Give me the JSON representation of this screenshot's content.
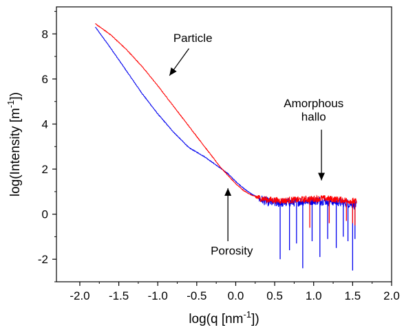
{
  "chart_data": {
    "type": "line",
    "xlabel": "log(q [nm",
    "xlabel_sup": "-1",
    "xlabel_end": "])",
    "ylabel": "log(Intensity [m",
    "ylabel_sup": "-1",
    "ylabel_end": "])",
    "xlim": [
      -2.3,
      2.0
    ],
    "ylim": [
      -3.0,
      9.2
    ],
    "x_ticks": [
      -2.0,
      -1.5,
      -1.0,
      -0.5,
      0.0,
      0.5,
      1.0,
      1.5,
      2.0
    ],
    "x_tick_labels": [
      "-2.0",
      "-1.5",
      "-1.0",
      "-0.5",
      "0.0",
      "0.5",
      "1.0",
      "1.5",
      "2.0"
    ],
    "y_ticks": [
      -2,
      0,
      2,
      4,
      6,
      8
    ],
    "y_tick_labels": [
      "-2",
      "0",
      "2",
      "4",
      "6",
      "8"
    ],
    "grid": false,
    "legend": "none",
    "series": [
      {
        "color": "#0000ee",
        "noise_from": 0.3,
        "noise_amplitude": 0.4,
        "spikes": [
          [
            0.57,
            -2.0
          ],
          [
            0.69,
            -1.6
          ],
          [
            0.78,
            -1.3
          ],
          [
            0.86,
            -2.4
          ],
          [
            0.98,
            -1.2
          ],
          [
            1.08,
            -1.9
          ],
          [
            1.18,
            -1.1
          ],
          [
            1.29,
            -1.5
          ],
          [
            1.38,
            -1.0
          ],
          [
            1.44,
            -1.2
          ],
          [
            1.5,
            -2.5
          ],
          [
            1.53,
            -1.1
          ]
        ],
        "x": [
          -1.8,
          -1.6,
          -1.4,
          -1.2,
          -1.0,
          -0.8,
          -0.6,
          -0.4,
          -0.3,
          -0.2,
          -0.1,
          0.0,
          0.1,
          0.2,
          0.3,
          0.4,
          0.5,
          0.6,
          0.7,
          0.8,
          0.9,
          1.0,
          1.1,
          1.2,
          1.3,
          1.4,
          1.5,
          1.55
        ],
        "values": [
          8.3,
          7.35,
          6.35,
          5.35,
          4.45,
          3.65,
          2.95,
          2.55,
          2.3,
          2.05,
          1.8,
          1.45,
          1.15,
          0.9,
          0.7,
          0.55,
          0.5,
          0.5,
          0.52,
          0.55,
          0.58,
          0.6,
          0.6,
          0.58,
          0.55,
          0.5,
          0.45,
          0.4
        ]
      },
      {
        "color": "#ff0000",
        "noise_from": 0.25,
        "noise_amplitude": 0.3,
        "spikes": [
          [
            0.95,
            -0.6
          ],
          [
            1.2,
            -0.4
          ],
          [
            1.42,
            -0.3
          ],
          [
            1.5,
            -0.4
          ],
          [
            1.53,
            -0.5
          ]
        ],
        "x": [
          -1.8,
          -1.6,
          -1.4,
          -1.2,
          -1.0,
          -0.8,
          -0.6,
          -0.4,
          -0.2,
          0.0,
          0.1,
          0.2,
          0.3,
          0.4,
          0.5,
          0.6,
          0.7,
          0.8,
          0.9,
          1.0,
          1.1,
          1.2,
          1.3,
          1.4,
          1.5,
          1.55
        ],
        "values": [
          8.45,
          7.95,
          7.3,
          6.55,
          5.7,
          4.8,
          3.9,
          3.0,
          2.1,
          1.35,
          1.05,
          0.85,
          0.72,
          0.65,
          0.62,
          0.6,
          0.62,
          0.64,
          0.66,
          0.68,
          0.7,
          0.68,
          0.65,
          0.62,
          0.58,
          0.55
        ]
      }
    ],
    "annotations": [
      {
        "text": "Particle",
        "text_x": -0.55,
        "text_y": 7.65,
        "from": [
          -0.6,
          7.35
        ],
        "to": [
          -0.85,
          6.15
        ]
      },
      {
        "text": "Amorphous",
        "text_x": 1.0,
        "text_y": 4.75,
        "from": null,
        "to": null
      },
      {
        "text": "hallo",
        "text_x": 1.0,
        "text_y": 4.15,
        "from": [
          1.1,
          3.75
        ],
        "to": [
          1.1,
          1.5
        ]
      },
      {
        "text": "Porosity",
        "text_x": -0.05,
        "text_y": -1.8,
        "from": [
          -0.1,
          -1.2
        ],
        "to": [
          -0.1,
          1.15
        ]
      }
    ]
  }
}
